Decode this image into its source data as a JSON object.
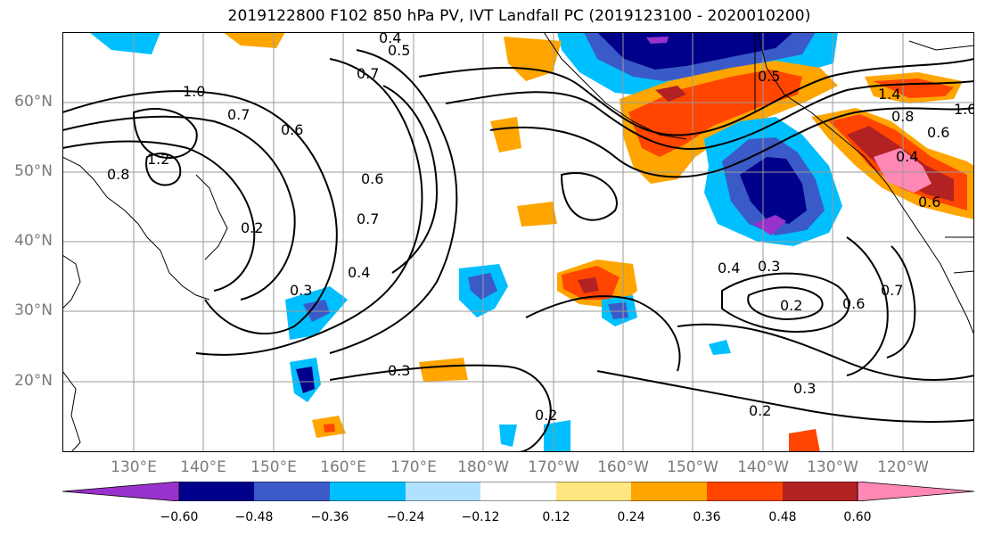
{
  "title": "2019122800 F102 850 hPa PV, IVT Landfall PC (2019123100 - 2020010200)",
  "lat_labels": [
    "60°N",
    "50°N",
    "40°N",
    "30°N",
    "20°N"
  ],
  "lon_labels": [
    "130°E",
    "140°E",
    "150°E",
    "160°E",
    "170°E",
    "180°W",
    "170°W",
    "160°W",
    "150°W",
    "140°W",
    "130°W",
    "120°W"
  ],
  "contour_labels": [
    "0.4",
    "0.5",
    "0.7",
    "1.0",
    "0.7",
    "1.2",
    "0.8",
    "0.6",
    "0.2",
    "0.3",
    "0.4",
    "0.6",
    "0.7",
    "0.4",
    "0.3",
    "0.2",
    "0.6",
    "0.7",
    "0.3",
    "0.2",
    "0.3",
    "0.2",
    "1.0",
    "1.4",
    "0.8",
    "0.6",
    "0.4",
    "0.6",
    "0.5"
  ],
  "colorbar": {
    "ticks": [
      "−0.60",
      "−0.48",
      "−0.36",
      "−0.24",
      "−0.12",
      "0.12",
      "0.24",
      "0.36",
      "0.48",
      "0.60"
    ],
    "colors": [
      "#9932cc",
      "#00008b",
      "#3a5bc7",
      "#00bfff",
      "#b0e2ff",
      "#ffffff",
      "#ffe680",
      "#ffa500",
      "#ff4500",
      "#b22222",
      "#ff88b4"
    ]
  }
}
